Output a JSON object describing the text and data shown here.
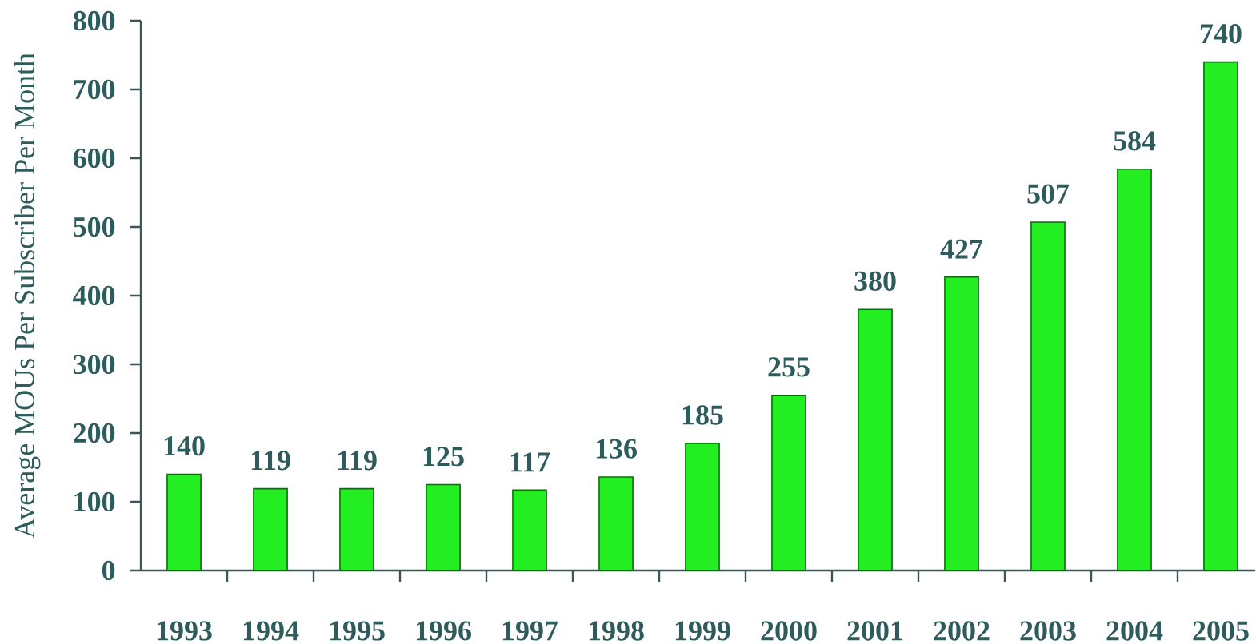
{
  "chart_data": {
    "type": "bar",
    "ylabel": "Average MOUs Per Subscriber Per Month",
    "categories": [
      "1993",
      "1994",
      "1995",
      "1996",
      "1997",
      "1998",
      "1999",
      "2000",
      "2001",
      "2002",
      "2003",
      "2004",
      "2005"
    ],
    "values": [
      140,
      119,
      119,
      125,
      117,
      136,
      185,
      255,
      380,
      427,
      507,
      584,
      740
    ],
    "color": "#22ee22",
    "ylim": [
      0,
      800
    ],
    "yticks": [
      0,
      100,
      200,
      300,
      400,
      500,
      600,
      700,
      800
    ],
    "data_labels": true
  }
}
